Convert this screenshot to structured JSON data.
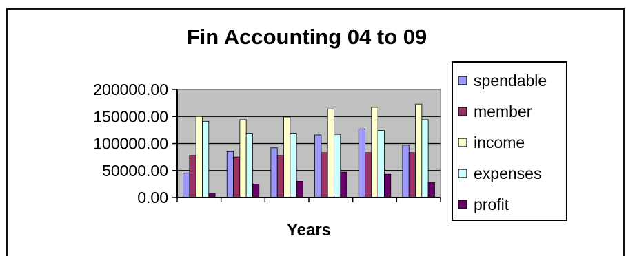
{
  "chart_data": {
    "type": "bar",
    "title": "Fin Accounting 04 to 09",
    "xlabel": "Years",
    "ylabel": "",
    "ylim": [
      0,
      200000
    ],
    "y_ticks": [
      "0.00",
      "50000.00",
      "100000.00",
      "150000.00",
      "200000.00"
    ],
    "y_tick_values": [
      0,
      50000,
      100000,
      150000,
      200000
    ],
    "categories": [
      "",
      "",
      "",
      "",
      "",
      ""
    ],
    "grid": "horizontal",
    "plot_background": "#c0c0c0",
    "legend_position": "right",
    "series": [
      {
        "name": "spendable",
        "color": "#9999ff",
        "values": [
          45000,
          85000,
          92000,
          116000,
          127000,
          97000
        ]
      },
      {
        "name": "member",
        "color": "#993366",
        "values": [
          78000,
          75000,
          78000,
          83000,
          83000,
          83000
        ]
      },
      {
        "name": "income",
        "color": "#ffffcc",
        "values": [
          150000,
          144000,
          149000,
          164000,
          167000,
          173000
        ]
      },
      {
        "name": "expenses",
        "color": "#ccffff",
        "values": [
          141000,
          119000,
          119000,
          117000,
          124000,
          144000
        ]
      },
      {
        "name": "profit",
        "color": "#660066",
        "values": [
          8000,
          25000,
          30000,
          47000,
          43000,
          28000
        ]
      }
    ]
  }
}
